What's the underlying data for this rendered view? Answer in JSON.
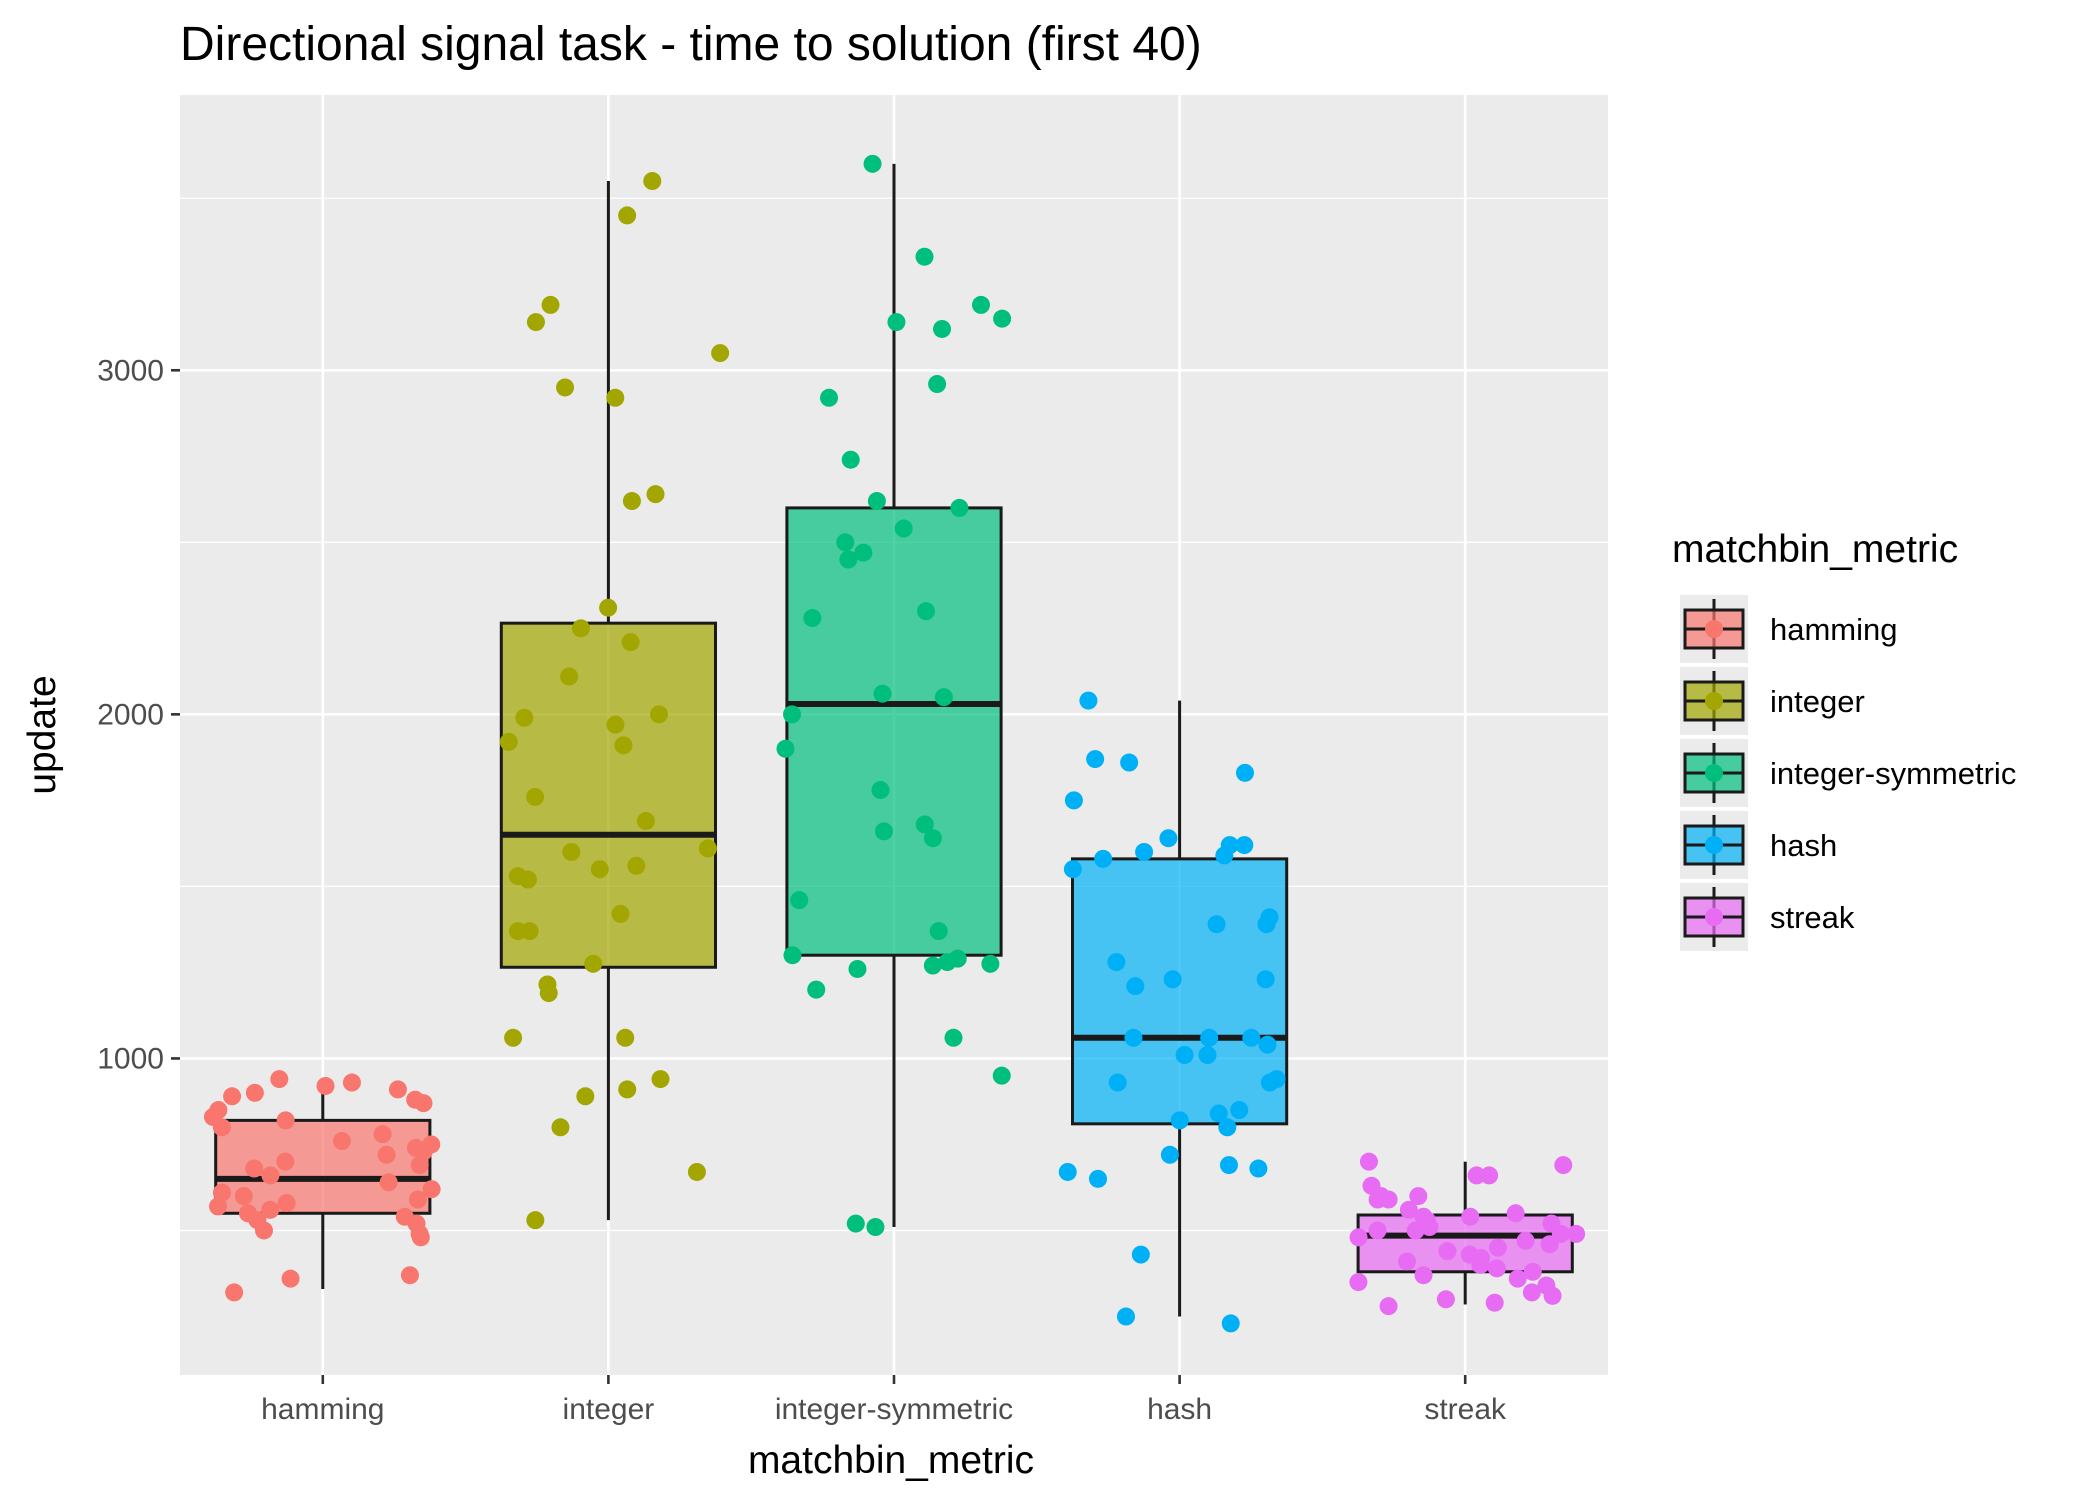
{
  "chart_data": {
    "type": "boxplot",
    "title": "Directional signal task - time to solution (first 40)",
    "xlabel": "matchbin_metric",
    "ylabel": "update",
    "categories": [
      "hamming",
      "integer",
      "integer-symmetric",
      "hash",
      "streak"
    ],
    "ylim": [
      80,
      3800
    ],
    "yticks": [
      1000,
      2000,
      3000
    ],
    "ytick_labels": [
      "1000",
      "2000",
      "3000"
    ],
    "grid": true,
    "legend": {
      "title": "matchbin_metric",
      "position": "right",
      "entries": [
        "hamming",
        "integer",
        "integer-symmetric",
        "hash",
        "streak"
      ]
    },
    "colors": {
      "hamming": "#F8766D",
      "integer": "#A3A500",
      "integer-symmetric": "#00BF7D",
      "hash": "#00B0F6",
      "streak": "#E76BF3",
      "panel": "#EBEBEB",
      "grid": "#FFFFFF"
    },
    "boxes": [
      {
        "name": "hamming",
        "whisker_low": 330,
        "q1": 550,
        "median": 650,
        "q3": 820,
        "whisker_high": 940
      },
      {
        "name": "integer",
        "whisker_low": 530,
        "q1": 1265,
        "median": 1650,
        "q3": 2265,
        "whisker_high": 3550
      },
      {
        "name": "integer-symmetric",
        "whisker_low": 510,
        "q1": 1300,
        "median": 2030,
        "q3": 2600,
        "whisker_high": 3600
      },
      {
        "name": "hash",
        "whisker_low": 250,
        "q1": 810,
        "median": 1060,
        "q3": 1580,
        "whisker_high": 2040
      },
      {
        "name": "streak",
        "whisker_low": 285,
        "q1": 380,
        "median": 485,
        "q3": 545,
        "whisker_high": 700
      }
    ],
    "points": [
      {
        "category": "hamming",
        "values": [
          890,
          910,
          870,
          850,
          830,
          800,
          780,
          760,
          740,
          720,
          700,
          680,
          660,
          640,
          620,
          600,
          580,
          570,
          560,
          550,
          540,
          530,
          520,
          500,
          490,
          480,
          940,
          930,
          920,
          900,
          880,
          820,
          750,
          730,
          690,
          610,
          590,
          370,
          360,
          320
        ]
      },
      {
        "category": "integer",
        "values": [
          3550,
          3450,
          3190,
          3140,
          3050,
          2950,
          2920,
          2640,
          2620,
          2310,
          2250,
          2210,
          2110,
          2000,
          1990,
          1970,
          1920,
          1910,
          1760,
          1690,
          1610,
          1600,
          1560,
          1550,
          1530,
          1520,
          1420,
          1370,
          1370,
          1275,
          1215,
          1190,
          1060,
          1060,
          940,
          910,
          890,
          800,
          670,
          530
        ]
      },
      {
        "category": "integer-symmetric",
        "values": [
          3600,
          3330,
          3190,
          3150,
          3140,
          3120,
          2960,
          2920,
          2740,
          2620,
          2600,
          2540,
          2500,
          2470,
          2450,
          2300,
          2280,
          2060,
          2050,
          2000,
          1900,
          1780,
          1680,
          1660,
          1640,
          1460,
          1370,
          1300,
          1290,
          1280,
          1275,
          1270,
          1260,
          1200,
          1060,
          950,
          520,
          510
        ]
      },
      {
        "category": "hash",
        "values": [
          2040,
          1870,
          1860,
          1830,
          1750,
          1640,
          1620,
          1620,
          1600,
          1590,
          1580,
          1550,
          1410,
          1390,
          1390,
          1280,
          1230,
          1230,
          1210,
          1060,
          1060,
          1060,
          1040,
          1010,
          1010,
          940,
          930,
          930,
          850,
          840,
          820,
          800,
          720,
          690,
          680,
          670,
          650,
          430,
          250,
          230
        ]
      },
      {
        "category": "streak",
        "values": [
          700,
          690,
          660,
          660,
          630,
          600,
          600,
          590,
          590,
          560,
          550,
          540,
          540,
          530,
          520,
          510,
          500,
          500,
          490,
          490,
          480,
          470,
          460,
          450,
          440,
          430,
          420,
          410,
          400,
          390,
          380,
          370,
          360,
          350,
          340,
          320,
          310,
          300,
          290,
          280
        ]
      }
    ]
  }
}
